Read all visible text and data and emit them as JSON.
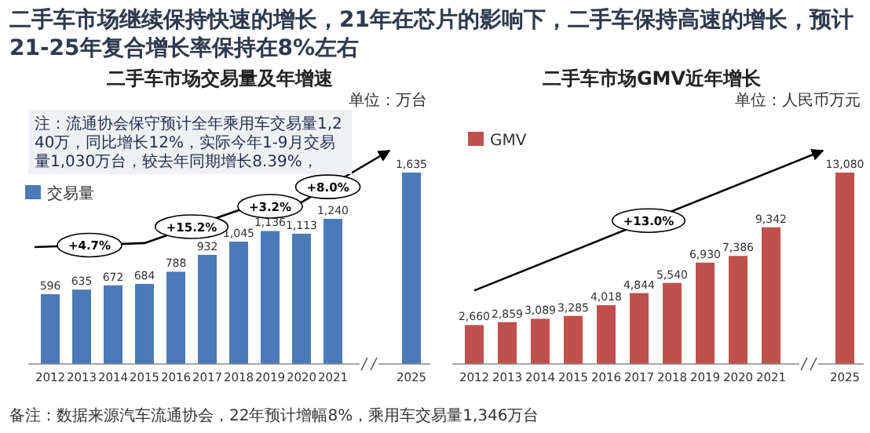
{
  "chart_data": [
    {
      "type": "bar",
      "title": "二手车市场交易量及年增速",
      "subtitle": "单位：万台",
      "categories": [
        "2012",
        "2013",
        "2014",
        "2015",
        "2016",
        "2017",
        "2018",
        "2019",
        "2020",
        "2021",
        "2025"
      ],
      "series": [
        {
          "name": "交易量",
          "color": "#4a7ab8",
          "values": [
            596,
            635,
            672,
            684,
            788,
            932,
            1045,
            1136,
            1113,
            1240,
            1635
          ],
          "value_labels": [
            "596",
            "635",
            "672",
            "684",
            "788",
            "932",
            "1,045",
            "1,136",
            "1,113",
            "1,240",
            "1,635"
          ]
        }
      ],
      "legend": "top left",
      "tick_labels": "x",
      "annotations": [
        "二手车市场继续保持快速的增长，21年在芯片的影响下，二手车保持高速的增长，预计21-25年复合增长率保持在8%左右",
        "注：流通协会保守预计全年乘用车交易量1,240万，同比增长12%，实际今年1-9月交易量1,030万台，较去年同期增长8.39%，",
        "备注：数据来源汽车流通协会，22年预计增幅8%，乘用车交易量1,346万台",
        "+4.7%",
        "+15.2%",
        "+3.2%",
        "+8.0%"
      ]
    },
    {
      "type": "bar",
      "title": "二手车市场GMV近年增长",
      "subtitle": "单位：人民币万元",
      "categories": [
        "2012",
        "2013",
        "2014",
        "2015",
        "2016",
        "2017",
        "2018",
        "2019",
        "2020",
        "2021",
        "2025"
      ],
      "series": [
        {
          "name": "GMV",
          "color": "#c0504d",
          "values": [
            2660,
            2859,
            3089,
            3285,
            4018,
            4844,
            5540,
            6930,
            7386,
            9342,
            13080
          ],
          "value_labels": [
            "2,660",
            "2,859",
            "3,089",
            "3,285",
            "4,018",
            "4,844",
            "5,540",
            "6,930",
            "7,386",
            "9,342",
            "13,080"
          ]
        }
      ],
      "legend": "top left",
      "tick_labels": "x",
      "annotations": [
        "+13.0%"
      ]
    }
  ]
}
